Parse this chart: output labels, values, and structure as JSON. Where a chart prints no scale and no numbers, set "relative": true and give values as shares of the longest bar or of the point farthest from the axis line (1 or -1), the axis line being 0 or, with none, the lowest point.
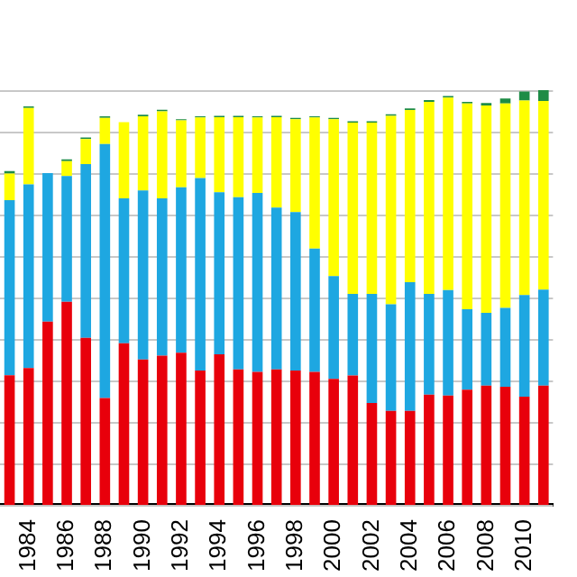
{
  "chart_data": {
    "type": "bar",
    "stacked": true,
    "relative": true,
    "grid": "y",
    "legend": false,
    "categories": [
      null,
      "1984",
      null,
      "1986",
      null,
      "1988",
      null,
      "1990",
      null,
      "1992",
      null,
      "1994",
      null,
      "1996",
      null,
      "1998",
      null,
      "2000",
      null,
      "2002",
      null,
      "2004",
      null,
      "2006",
      null,
      "2008",
      null,
      "2010",
      null
    ],
    "series": [
      {
        "color": "#e8000b",
        "values": [
          0.313,
          0.33,
          0.442,
          0.49,
          0.403,
          0.258,
          0.39,
          0.351,
          0.36,
          0.367,
          0.324,
          0.363,
          0.327,
          0.321,
          0.327,
          0.324,
          0.321,
          0.304,
          0.312,
          0.246,
          0.227,
          0.227,
          0.266,
          0.264,
          0.278,
          0.288,
          0.285,
          0.261,
          0.288
        ]
      },
      {
        "color": "#1ea7e1",
        "values": [
          0.422,
          0.443,
          0.358,
          0.303,
          0.419,
          0.612,
          0.349,
          0.407,
          0.379,
          0.399,
          0.464,
          0.391,
          0.415,
          0.431,
          0.39,
          0.382,
          0.297,
          0.248,
          0.197,
          0.263,
          0.257,
          0.31,
          0.243,
          0.254,
          0.194,
          0.175,
          0.19,
          0.245,
          0.231
        ]
      },
      {
        "color": "#ffff00",
        "values": [
          0.064,
          0.184,
          0,
          0.036,
          0.06,
          0.063,
          0.184,
          0.179,
          0.21,
          0.161,
          0.146,
          0.181,
          0.193,
          0.182,
          0.218,
          0.224,
          0.316,
          0.378,
          0.413,
          0.413,
          0.454,
          0.415,
          0.463,
          0.464,
          0.496,
          0.5,
          0.493,
          0.469,
          0.455
        ]
      },
      {
        "color": "#1e8c46",
        "values": [
          0.006,
          0.004,
          0,
          0.004,
          0.004,
          0.004,
          0,
          0.004,
          0.004,
          0.003,
          0.003,
          0.003,
          0.003,
          0.003,
          0.003,
          0.003,
          0.003,
          0.003,
          0.003,
          0.003,
          0.004,
          0.004,
          0.004,
          0.004,
          0.004,
          0.006,
          0.012,
          0.022,
          0.026
        ]
      }
    ]
  }
}
